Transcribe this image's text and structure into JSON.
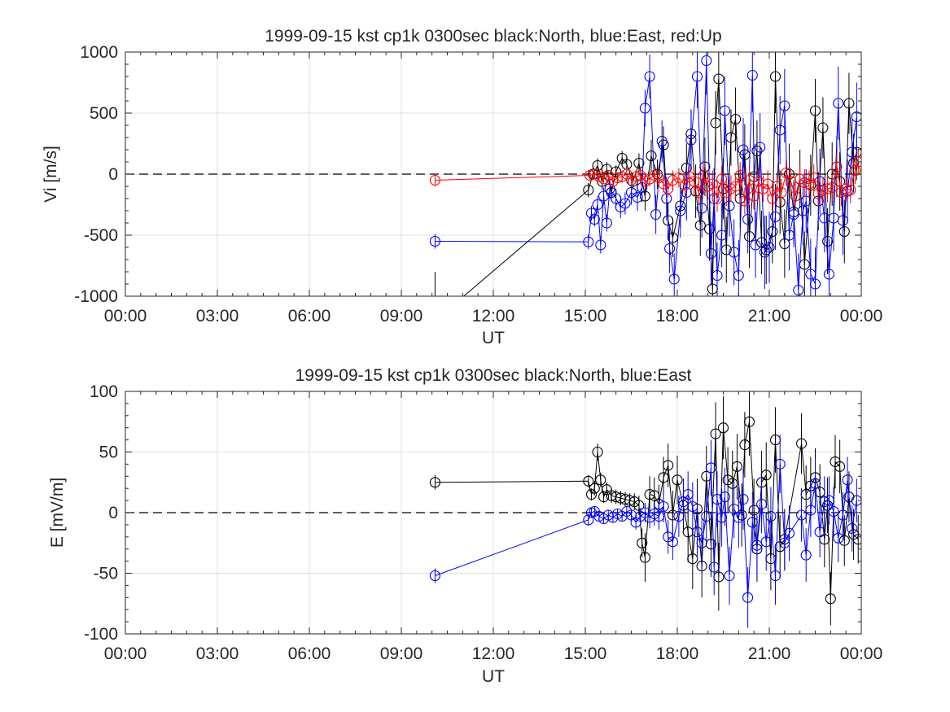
{
  "figure": {
    "background": "#ffffff",
    "colors": {
      "north": "#000000",
      "east": "#0000ff",
      "up": "#ff0000",
      "grid": "#e0e0e0",
      "axis": "#262626"
    }
  },
  "chart_data": [
    {
      "type": "scatter",
      "title": "1999-09-15 kst cp1k 0300sec black:North, blue:East, red:Up",
      "xlabel": "UT",
      "ylabel": "Vi [m/s]",
      "xlim_hours": [
        0,
        24
      ],
      "ylim": [
        -1000,
        1000
      ],
      "xticks": [
        "00:00",
        "03:00",
        "06:00",
        "09:00",
        "12:00",
        "15:00",
        "18:00",
        "21:00",
        "00:00"
      ],
      "yticks": [
        "1000",
        "500",
        "0",
        "-500",
        "-1000"
      ],
      "grid": true,
      "zero_line": "dashed",
      "markers": "open-circle-with-errorbar",
      "series": [
        {
          "name": "North",
          "color": "#000000",
          "x_hours": [
            10.1,
            15.1,
            15.25,
            15.4,
            15.55,
            15.7,
            15.85,
            16.0,
            16.2,
            16.35,
            16.55,
            16.75,
            16.95,
            17.15,
            17.35,
            17.55,
            17.7,
            17.85,
            18.1,
            18.3,
            18.45,
            18.6,
            18.75,
            18.9,
            19.05,
            19.15,
            19.25,
            19.35,
            19.5,
            19.6,
            19.75,
            19.9,
            20.05,
            20.2,
            20.35,
            20.5,
            20.6,
            20.75,
            20.9,
            21.1,
            21.2,
            21.35,
            21.5,
            21.65,
            21.8,
            22.0,
            22.15,
            22.35,
            22.5,
            22.6,
            22.75,
            22.9,
            23.05,
            23.2,
            23.3,
            23.45,
            23.6,
            23.75,
            23.85
          ],
          "y": [
            -1200,
            -130,
            0,
            70,
            -60,
            40,
            -150,
            20,
            130,
            80,
            -60,
            90,
            -180,
            150,
            0,
            240,
            -380,
            -520,
            -260,
            50,
            330,
            -140,
            -420,
            60,
            -450,
            -940,
            420,
            780,
            -120,
            -620,
            300,
            450,
            -200,
            160,
            -510,
            -20,
            190,
            -560,
            -620,
            -470,
            800,
            -230,
            -570,
            0,
            -310,
            -40,
            -740,
            -90,
            520,
            -220,
            380,
            -550,
            0,
            60,
            -60,
            -470,
            580,
            90,
            180
          ],
          "errors": [
            400,
            60,
            50,
            60,
            70,
            60,
            60,
            50,
            60,
            70,
            70,
            80,
            120,
            130,
            120,
            150,
            150,
            160,
            180,
            200,
            200,
            220,
            250,
            240,
            260,
            280,
            260,
            290,
            250,
            270,
            230,
            260,
            240,
            250,
            260,
            270,
            250,
            260,
            280,
            260,
            300,
            260,
            280,
            250,
            260,
            240,
            270,
            250,
            260,
            240,
            250,
            270,
            260,
            250,
            240,
            260,
            250,
            240,
            230
          ]
        },
        {
          "name": "East",
          "color": "#0000ff",
          "x_hours": [
            10.1,
            15.1,
            15.2,
            15.3,
            15.4,
            15.5,
            15.6,
            15.7,
            15.8,
            16.0,
            16.15,
            16.3,
            16.5,
            16.7,
            16.85,
            16.95,
            17.1,
            17.3,
            17.5,
            17.65,
            17.75,
            17.9,
            18.1,
            18.3,
            18.45,
            18.65,
            18.8,
            18.95,
            19.1,
            19.2,
            19.3,
            19.45,
            19.55,
            19.7,
            19.85,
            20.0,
            20.15,
            20.3,
            20.45,
            20.55,
            20.7,
            20.85,
            21.0,
            21.2,
            21.35,
            21.5,
            21.65,
            21.8,
            21.95,
            22.1,
            22.2,
            22.35,
            22.5,
            22.65,
            22.8,
            22.95,
            23.1,
            23.25,
            23.4,
            23.55,
            23.7,
            23.85
          ],
          "y": [
            -550,
            -555,
            -320,
            -370,
            -250,
            -580,
            -180,
            -400,
            -120,
            -200,
            -270,
            -240,
            -150,
            -190,
            -110,
            540,
            800,
            -330,
            270,
            -200,
            -610,
            -860,
            -300,
            -150,
            280,
            800,
            -280,
            930,
            -650,
            -200,
            -830,
            -500,
            520,
            -260,
            -640,
            -830,
            200,
            -370,
            810,
            -580,
            220,
            -640,
            -600,
            -350,
            360,
            560,
            -500,
            -330,
            -950,
            -300,
            -220,
            -820,
            -900,
            -60,
            -360,
            -820,
            -360,
            580,
            -380,
            -140,
            180,
            470
          ],
          "errors": [
            60,
            60,
            60,
            60,
            70,
            70,
            70,
            70,
            80,
            80,
            90,
            90,
            100,
            110,
            120,
            150,
            180,
            160,
            170,
            180,
            200,
            210,
            220,
            230,
            240,
            260,
            240,
            280,
            260,
            250,
            270,
            260,
            280,
            250,
            270,
            290,
            260,
            280,
            300,
            270,
            280,
            300,
            290,
            270,
            280,
            300,
            290,
            270,
            300,
            280,
            260,
            290,
            300,
            270,
            280,
            290,
            270,
            300,
            280,
            260,
            270,
            280
          ]
        },
        {
          "name": "Up",
          "color": "#ff0000",
          "x_hours": [
            10.1,
            15.15,
            15.3,
            15.45,
            15.6,
            15.75,
            15.9,
            16.05,
            16.2,
            16.35,
            16.5,
            16.65,
            16.8,
            16.95,
            17.1,
            17.25,
            17.4,
            17.55,
            17.7,
            17.85,
            18.05,
            18.25,
            18.4,
            18.55,
            18.7,
            18.85,
            19.0,
            19.15,
            19.3,
            19.45,
            19.6,
            19.75,
            19.9,
            20.05,
            20.2,
            20.35,
            20.5,
            20.65,
            20.8,
            20.95,
            21.1,
            21.25,
            21.4,
            21.55,
            21.7,
            21.85,
            22.0,
            22.15,
            22.3,
            22.45,
            22.6,
            22.75,
            22.9,
            23.05,
            23.2,
            23.35,
            23.5,
            23.65,
            23.8,
            23.9
          ],
          "y": [
            -50,
            -10,
            0,
            -20,
            -40,
            -10,
            -60,
            -30,
            -20,
            0,
            -50,
            -20,
            -10,
            -60,
            -40,
            -10,
            -30,
            -80,
            -120,
            -50,
            -30,
            -90,
            -20,
            -60,
            -150,
            -10,
            -100,
            -80,
            -200,
            -40,
            -150,
            -120,
            -100,
            -10,
            -220,
            -50,
            -180,
            -60,
            -120,
            -80,
            -200,
            -100,
            -150,
            10,
            -60,
            -180,
            -40,
            -70,
            -80,
            -30,
            -160,
            -130,
            -120,
            -110,
            60,
            -150,
            -120,
            -130,
            30,
            100
          ],
          "errors": [
            50,
            40,
            40,
            40,
            40,
            40,
            40,
            40,
            50,
            50,
            50,
            50,
            60,
            60,
            60,
            60,
            70,
            70,
            70,
            80,
            80,
            90,
            90,
            100,
            100,
            100,
            110,
            110,
            110,
            110,
            110,
            110,
            110,
            110,
            110,
            110,
            110,
            110,
            110,
            110,
            110,
            110,
            110,
            110,
            110,
            110,
            110,
            110,
            110,
            110,
            110,
            110,
            110,
            110,
            110,
            110,
            110,
            110,
            110,
            110
          ]
        }
      ]
    },
    {
      "type": "scatter",
      "title": "1999-09-15 kst cp1k 0300sec black:North, blue:East",
      "xlabel": "UT",
      "ylabel": "E [mV/m]",
      "xlim_hours": [
        0,
        24
      ],
      "ylim": [
        -100,
        100
      ],
      "xticks": [
        "00:00",
        "03:00",
        "06:00",
        "09:00",
        "12:00",
        "15:00",
        "18:00",
        "21:00",
        "00:00"
      ],
      "yticks": [
        "100",
        "50",
        "0",
        "-50",
        "-100"
      ],
      "grid": true,
      "zero_line": "dashed",
      "markers": "open-circle-with-errorbar",
      "series": [
        {
          "name": "North",
          "color": "#000000",
          "x_hours": [
            10.1,
            15.1,
            15.2,
            15.3,
            15.4,
            15.5,
            15.6,
            15.7,
            15.85,
            16.0,
            16.15,
            16.3,
            16.45,
            16.6,
            16.75,
            16.85,
            16.95,
            17.1,
            17.25,
            17.4,
            17.55,
            17.7,
            17.85,
            18.0,
            18.2,
            18.35,
            18.5,
            18.65,
            18.8,
            18.95,
            19.1,
            19.25,
            19.35,
            19.5,
            19.65,
            19.8,
            19.95,
            20.1,
            20.2,
            20.35,
            20.5,
            20.6,
            20.75,
            20.9,
            21.05,
            21.2,
            21.35,
            21.5,
            22.05,
            22.2,
            22.35,
            22.5,
            22.65,
            22.8,
            22.9,
            23.0,
            23.15,
            23.3,
            23.45,
            23.6,
            23.75,
            23.9
          ],
          "y": [
            25,
            26,
            15,
            20,
            50,
            27,
            13,
            19,
            14,
            13,
            12,
            11,
            10,
            9,
            6,
            -25,
            -37,
            15,
            14,
            7,
            29,
            39,
            -2,
            27,
            6,
            -16,
            -38,
            3,
            -44,
            30,
            -26,
            65,
            -53,
            70,
            27,
            24,
            38,
            -2,
            56,
            75,
            2,
            -30,
            25,
            31,
            -38,
            60,
            -28,
            -22,
            57,
            15,
            22,
            29,
            17,
            -22,
            6,
            -71,
            42,
            38,
            -23,
            13,
            -18,
            -22
          ],
          "errors": [
            6,
            5,
            5,
            6,
            7,
            6,
            5,
            6,
            6,
            6,
            6,
            6,
            6,
            7,
            8,
            12,
            20,
            15,
            15,
            16,
            17,
            18,
            20,
            20,
            22,
            25,
            25,
            25,
            26,
            25,
            27,
            26,
            28,
            26,
            27,
            27,
            27,
            26,
            27,
            28,
            26,
            27,
            26,
            27,
            26,
            27,
            26,
            25,
            25,
            24,
            24,
            24,
            23,
            23,
            23,
            22,
            22,
            22,
            21,
            21,
            21,
            20
          ]
        },
        {
          "name": "East",
          "color": "#0000ff",
          "x_hours": [
            10.1,
            15.1,
            15.2,
            15.3,
            15.45,
            15.6,
            15.75,
            15.9,
            16.05,
            16.2,
            16.35,
            16.5,
            16.65,
            16.8,
            16.95,
            17.1,
            17.25,
            17.4,
            17.55,
            17.7,
            17.85,
            18.05,
            18.2,
            18.35,
            18.5,
            18.65,
            18.8,
            18.95,
            19.1,
            19.2,
            19.3,
            19.45,
            19.55,
            19.7,
            19.85,
            20.0,
            20.15,
            20.3,
            20.45,
            20.6,
            20.75,
            20.9,
            21.05,
            21.2,
            21.35,
            21.5,
            21.65,
            22.05,
            22.2,
            22.35,
            22.5,
            22.65,
            22.8,
            22.95,
            23.1,
            23.25,
            23.4,
            23.55,
            23.7,
            23.85
          ],
          "y": [
            -52,
            -6,
            0,
            1,
            -3,
            -5,
            -2,
            -4,
            -1,
            -3,
            1,
            -2,
            -8,
            -3,
            0,
            -4,
            -1,
            -3,
            5,
            -20,
            -24,
            -3,
            9,
            15,
            5,
            -16,
            -25,
            -3,
            37,
            -45,
            11,
            -4,
            13,
            -52,
            3,
            -4,
            11,
            -70,
            -8,
            -27,
            7,
            -24,
            -3,
            -52,
            40,
            -25,
            -17,
            -2,
            -35,
            2,
            24,
            -16,
            9,
            10,
            1,
            -21,
            -2,
            27,
            -13,
            10
          ],
          "errors": [
            6,
            5,
            4,
            4,
            4,
            4,
            4,
            4,
            4,
            4,
            4,
            5,
            6,
            7,
            8,
            9,
            10,
            11,
            13,
            14,
            15,
            17,
            18,
            19,
            20,
            20,
            21,
            22,
            23,
            23,
            23,
            24,
            24,
            24,
            24,
            25,
            25,
            25,
            25,
            25,
            24,
            24,
            24,
            24,
            24,
            23,
            23,
            22,
            22,
            22,
            21,
            21,
            21,
            20,
            20,
            20,
            19,
            19,
            19,
            18
          ]
        }
      ]
    }
  ]
}
